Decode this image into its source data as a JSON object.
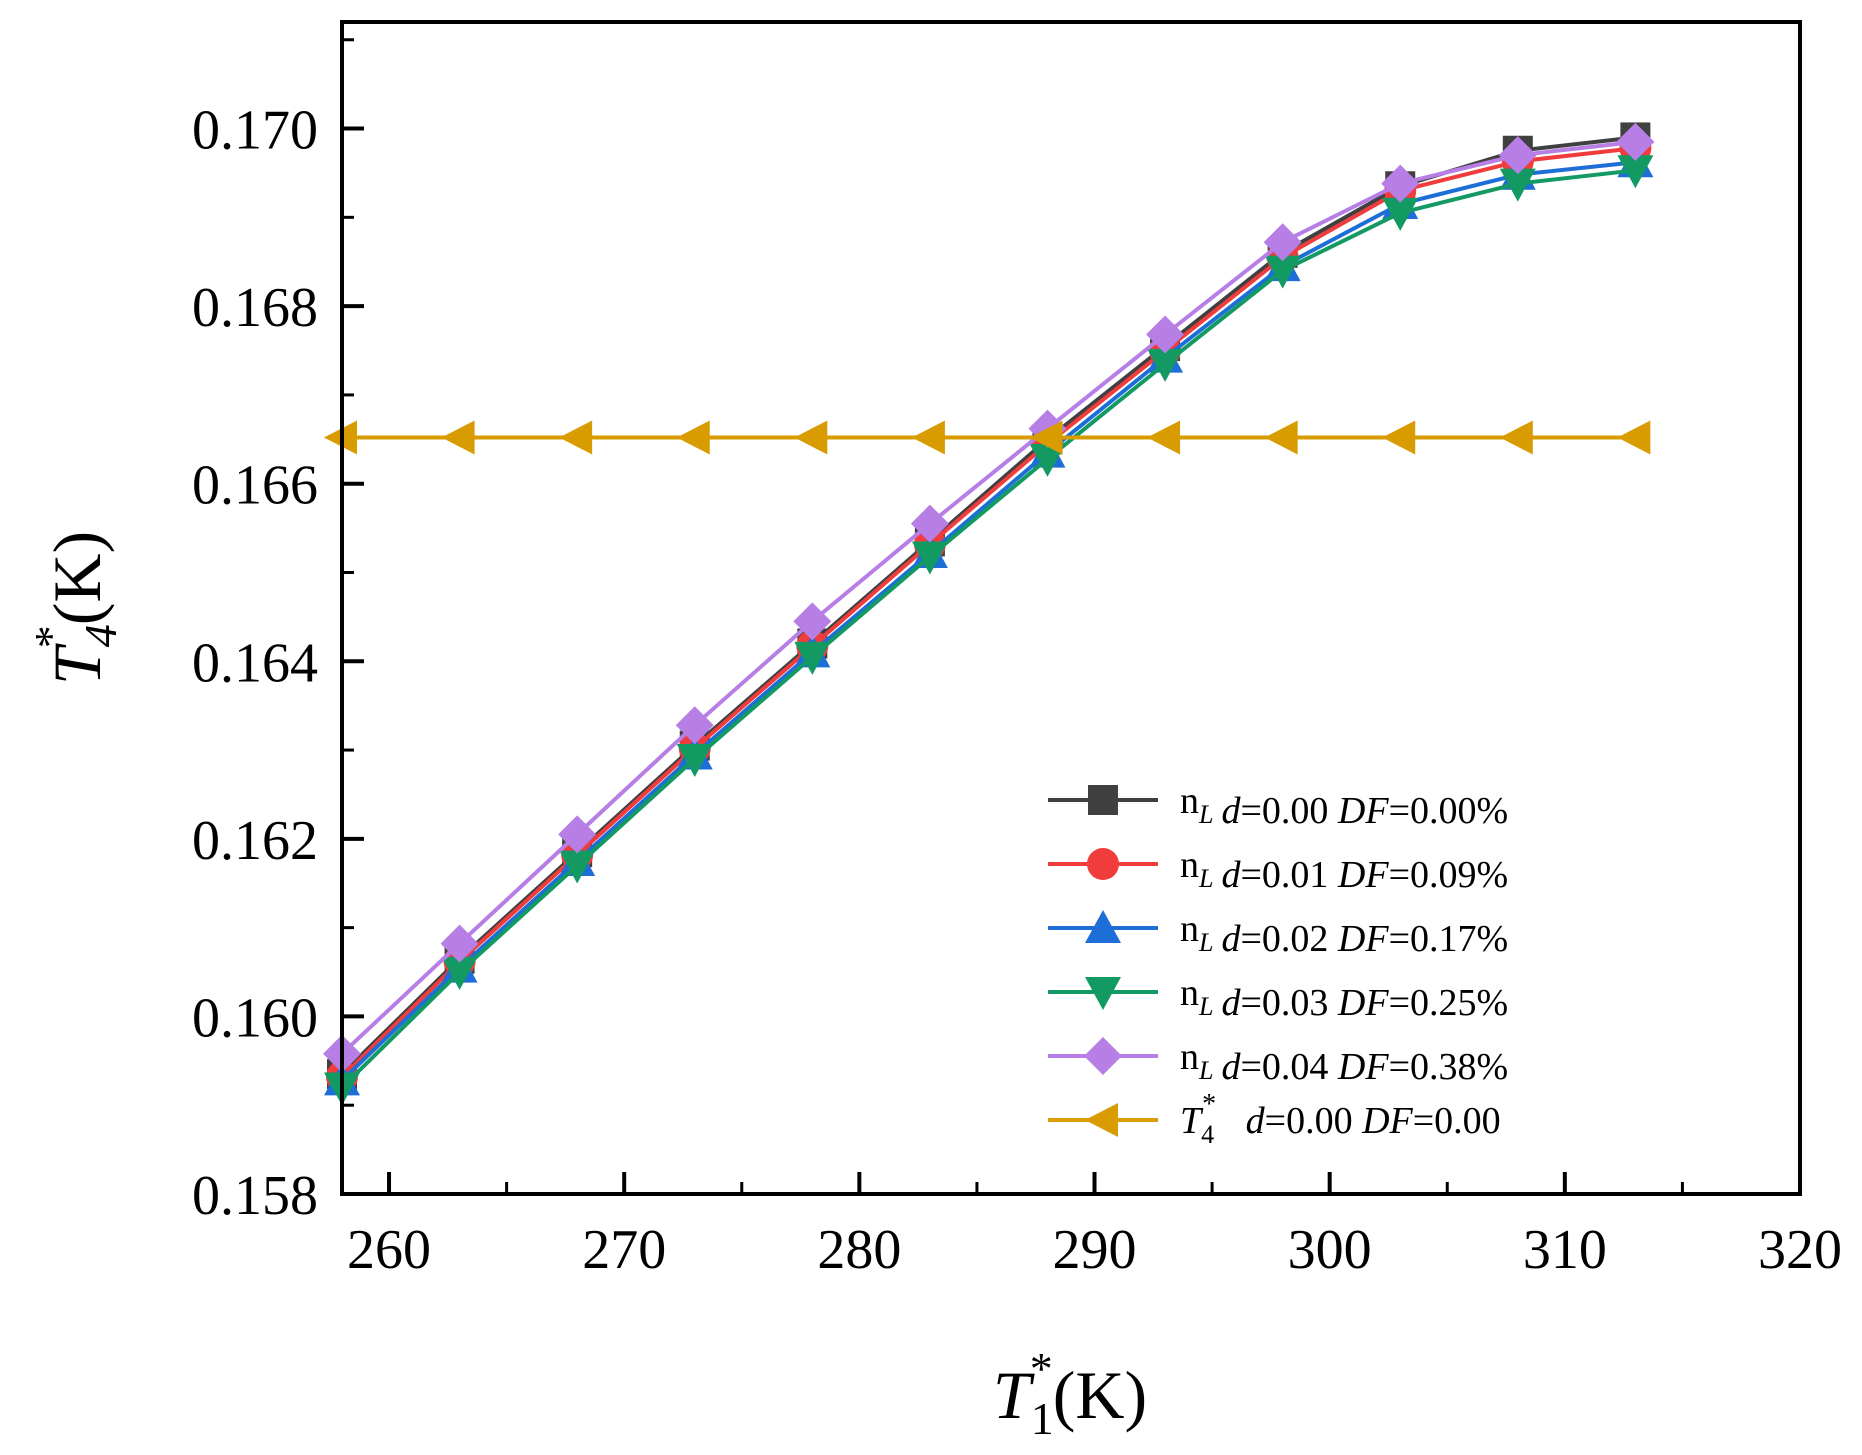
{
  "chart_data": {
    "type": "line",
    "x": [
      258,
      263,
      268,
      273,
      278,
      283,
      288,
      293,
      298,
      303,
      308,
      313
    ],
    "xlim": [
      258,
      320
    ],
    "ylim": [
      0.158,
      0.1712
    ],
    "x_ticks": [
      260,
      270,
      280,
      290,
      300,
      310,
      320
    ],
    "y_ticks": [
      0.158,
      0.16,
      0.162,
      0.164,
      0.166,
      0.168,
      0.17
    ],
    "x_tick_labels": [
      "260",
      "270",
      "280",
      "290",
      "300",
      "310",
      "320"
    ],
    "y_tick_labels": [
      "0.158",
      "0.160",
      "0.162",
      "0.164",
      "0.166",
      "0.168",
      "0.170"
    ],
    "xlabel": {
      "main": "T",
      "sup": "*",
      "sub": "1",
      "unit": "(K)"
    },
    "ylabel": {
      "main": "T",
      "sup": "*",
      "sub": "4",
      "unit": "(K)"
    },
    "grid": false,
    "legend_position": "bottom-right",
    "series": [
      {
        "name": "nL d=0.00 DF=0.00%",
        "label_parts": {
          "var": "n",
          "var_sub": "L",
          "d_label": "d",
          "d_value": "=0.00",
          "df_label": "DF",
          "df_value": "=0.00%"
        },
        "color": "#404040",
        "marker": "square",
        "values": [
          0.15935,
          0.16065,
          0.16185,
          0.16305,
          0.1642,
          0.16535,
          0.1665,
          0.16755,
          0.1686,
          0.16935,
          0.16975,
          0.1699
        ]
      },
      {
        "name": "nL d=0.01 DF=0.09%",
        "label_parts": {
          "var": "n",
          "var_sub": "L",
          "d_label": "d",
          "d_value": "=0.01",
          "df_label": "DF",
          "df_value": "=0.09%"
        },
        "color": "#f03c3c",
        "marker": "circle",
        "values": [
          0.15932,
          0.16062,
          0.16182,
          0.16302,
          0.16417,
          0.16532,
          0.16645,
          0.1675,
          0.16855,
          0.1693,
          0.16963,
          0.16978
        ]
      },
      {
        "name": "nL d=0.02 DF=0.17%",
        "label_parts": {
          "var": "n",
          "var_sub": "L",
          "d_label": "d",
          "d_value": "=0.02",
          "df_label": "DF",
          "df_value": "=0.17%"
        },
        "color": "#1e6ed8",
        "marker": "triangle-up",
        "values": [
          0.15928,
          0.16055,
          0.16175,
          0.16295,
          0.1641,
          0.16522,
          0.16635,
          0.16742,
          0.16845,
          0.16915,
          0.16948,
          0.16962
        ]
      },
      {
        "name": "nL d=0.03 DF=0.25%",
        "label_parts": {
          "var": "n",
          "var_sub": "L",
          "d_label": "d",
          "d_value": "=0.03",
          "df_label": "DF",
          "df_value": "=0.25%"
        },
        "color": "#129a62",
        "marker": "triangle-down",
        "values": [
          0.1592,
          0.1605,
          0.1617,
          0.1629,
          0.16405,
          0.16518,
          0.16628,
          0.16735,
          0.1684,
          0.16905,
          0.16938,
          0.16953
        ]
      },
      {
        "name": "nL d=0.04 DF=0.38%",
        "label_parts": {
          "var": "n",
          "var_sub": "L",
          "d_label": "d",
          "d_value": "=0.04",
          "df_label": "DF",
          "df_value": "=0.38%"
        },
        "color": "#b77fe6",
        "marker": "diamond",
        "values": [
          0.15958,
          0.16082,
          0.16205,
          0.16328,
          0.16445,
          0.16555,
          0.16662,
          0.16768,
          0.16872,
          0.16938,
          0.1697,
          0.16985
        ]
      },
      {
        "name": "T4* d=0.00 DF=0.00",
        "label_parts": {
          "var": "T",
          "var_sub": "4",
          "var_sup": "*",
          "d_label": "d",
          "d_value": "=0.00",
          "df_label": "DF",
          "df_value": "=0.00"
        },
        "color": "#d89c00",
        "marker": "triangle-left",
        "values": [
          0.16652,
          0.16652,
          0.16652,
          0.16652,
          0.16652,
          0.16652,
          0.16652,
          0.16652,
          0.16652,
          0.16652,
          0.16652,
          0.16652
        ]
      }
    ]
  }
}
